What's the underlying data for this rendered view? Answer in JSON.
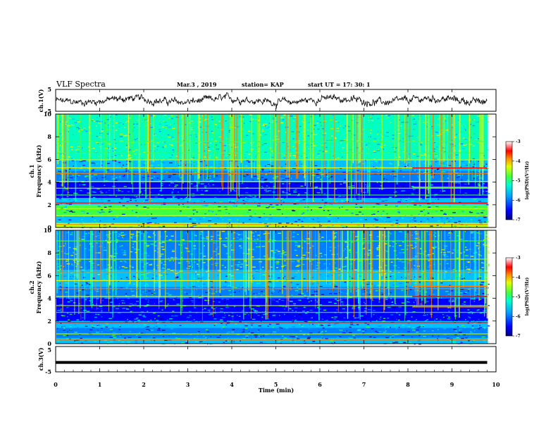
{
  "header": {
    "title": "VLF Spectra",
    "date": "Mar.3  , 2019",
    "station": "station= KAP",
    "start": "start  UT  =   17: 30: 1"
  },
  "colors": {
    "colormap": [
      "#000080",
      "#0000ff",
      "#0080ff",
      "#00c0ff",
      "#00ffc0",
      "#40ff40",
      "#c0ff00",
      "#ffff00",
      "#ff8000",
      "#ff0000",
      "#ffffff"
    ],
    "trace": "#000000"
  },
  "chart_data": [
    {
      "type": "line",
      "name": "ch1-waveform",
      "ylabel": "ch.1(V)",
      "ylim": [
        -5,
        5
      ],
      "yticks": [
        "5",
        "-5"
      ],
      "xlim": [
        0,
        10
      ]
    },
    {
      "type": "heatmap",
      "name": "ch1-spectrogram",
      "ylabel": "ch.1",
      "ylabel2": "Frequency  (kHz)",
      "ylim": [
        0,
        10
      ],
      "yticks": [
        "0",
        "2",
        "4",
        "6",
        "8",
        "10"
      ],
      "xlim": [
        0,
        9.8
      ],
      "colorbar": {
        "label": "log(PSD)(V²/Hz)",
        "range": [
          -7,
          -3
        ],
        "ticks": [
          "-3",
          "-4",
          "-5",
          "-6",
          "-7"
        ]
      }
    },
    {
      "type": "heatmap",
      "name": "ch2-spectrogram",
      "ylabel": "ch.2",
      "ylabel2": "Frequency  (kHz)",
      "ylim": [
        0,
        10
      ],
      "yticks": [
        "0",
        "2",
        "4",
        "6",
        "8",
        "10"
      ],
      "xlim": [
        0,
        9.8
      ],
      "colorbar": {
        "label": "log(PSD)(V²/Hz)",
        "range": [
          -7,
          -3
        ],
        "ticks": [
          "-3",
          "-4",
          "-5",
          "-6",
          "-7"
        ]
      }
    },
    {
      "type": "line",
      "name": "ch3-waveform",
      "ylabel": "ch.3(V)",
      "ylim": [
        -5,
        5
      ],
      "yticks": [
        "5",
        "-5"
      ],
      "x": [
        0,
        9.8
      ],
      "y": [
        -1.3,
        -1.3
      ]
    }
  ],
  "xaxis": {
    "label": "Time  (min)",
    "ticks": [
      "0",
      "1",
      "2",
      "3",
      "4",
      "5",
      "6",
      "7",
      "8",
      "9",
      "10"
    ],
    "range": [
      0,
      10
    ]
  }
}
